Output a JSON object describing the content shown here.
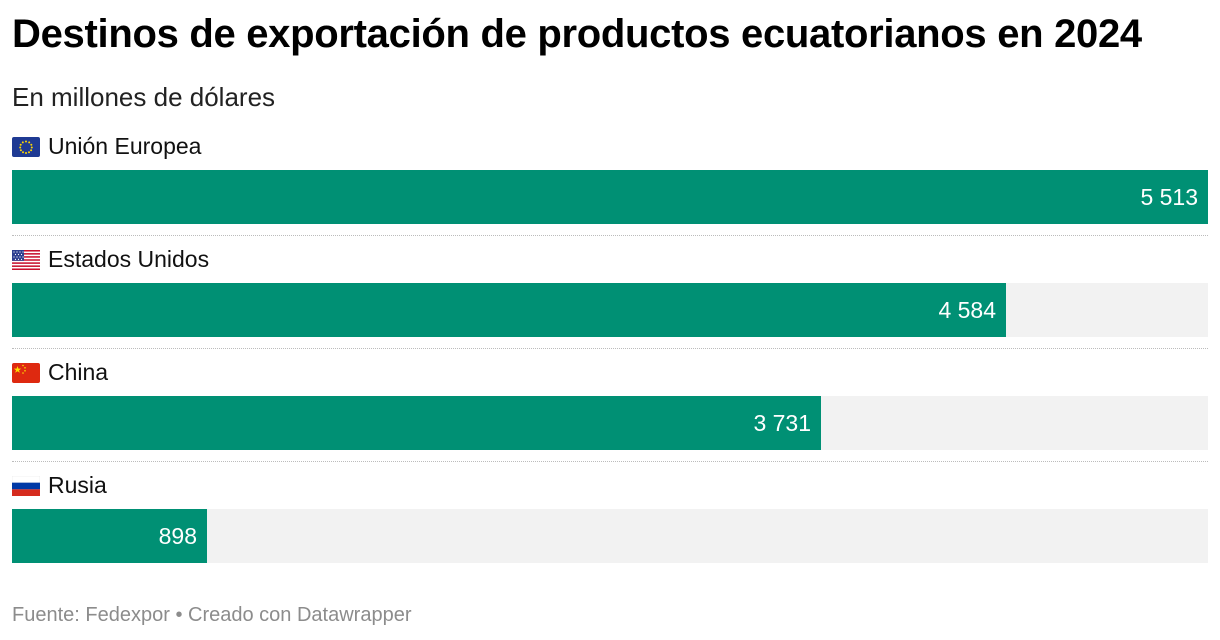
{
  "title": "Destinos de exportación de productos ecuatorianos en 2024",
  "subtitle": "En millones de dólares",
  "footer": {
    "source": "Fuente: Fedexpor",
    "separator": "•",
    "credit": "Creado con Datawrapper"
  },
  "colors": {
    "bar": "#009074",
    "track": "#f2f2f2",
    "value_text": "#ffffff"
  },
  "chart_data": {
    "type": "bar",
    "orientation": "horizontal",
    "categories": [
      "Unión Europea",
      "Estados Unidos",
      "China",
      "Rusia"
    ],
    "flags": [
      "eu-flag-icon",
      "us-flag-icon",
      "china-flag-icon",
      "russia-flag-icon"
    ],
    "values": [
      5513,
      4584,
      3731,
      898
    ],
    "value_labels": [
      "5 513",
      "4 584",
      "3 731",
      "898"
    ],
    "title": "Destinos de exportación de productos ecuatorianos en 2024",
    "subtitle": "En millones de dólares",
    "xlim": [
      0,
      5513
    ],
    "grid": false,
    "legend": "none"
  }
}
